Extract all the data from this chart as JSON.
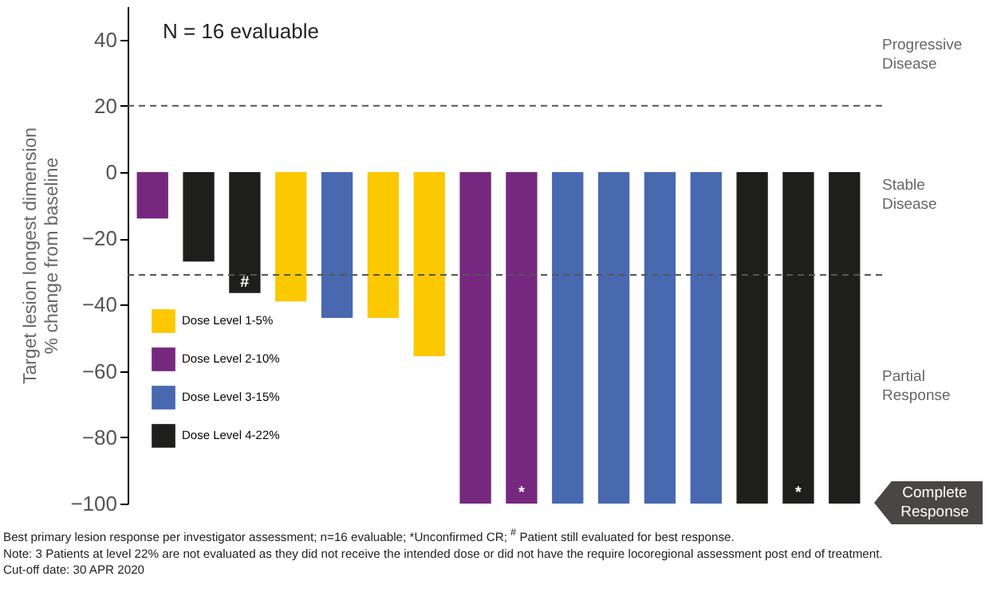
{
  "chart_data": {
    "type": "bar",
    "ylabel": "Target lesion longest dimension\n% change from baseline",
    "categories": [
      null,
      null,
      null,
      null,
      null,
      null,
      null,
      null,
      null,
      null,
      null,
      null,
      null,
      null,
      null,
      null
    ],
    "series": [
      {
        "name": "Dose Level 1-5%",
        "color": "#fcc800",
        "values": [
          null,
          null,
          null,
          -39,
          null,
          -44,
          -55.5,
          null,
          null,
          null,
          null,
          null,
          null,
          null,
          null,
          null
        ]
      },
      {
        "name": "Dose Level 2-10%",
        "color": "#76287f",
        "values": [
          -14,
          null,
          null,
          null,
          null,
          null,
          null,
          -100,
          -100,
          null,
          null,
          null,
          null,
          null,
          null,
          null
        ],
        "value_labels": [
          null,
          null,
          null,
          null,
          null,
          null,
          null,
          null,
          "*",
          null,
          null,
          null,
          null,
          null,
          null,
          null
        ]
      },
      {
        "name": "Dose Level 3-15%",
        "color": "#4868b0",
        "values": [
          null,
          null,
          null,
          null,
          -44,
          null,
          null,
          null,
          null,
          -100,
          -100,
          -100,
          -100,
          null,
          null,
          null
        ]
      },
      {
        "name": "Dose Level 4-22%",
        "color": "#1e1f1c",
        "values": [
          null,
          -27,
          -36.5,
          null,
          null,
          null,
          null,
          null,
          null,
          null,
          null,
          null,
          null,
          -100,
          -100,
          -100
        ],
        "value_labels": [
          null,
          null,
          "#",
          null,
          null,
          null,
          null,
          null,
          null,
          null,
          null,
          null,
          null,
          null,
          "*",
          null
        ]
      }
    ],
    "ylim": [
      -100,
      50
    ],
    "yticks": [
      -100,
      -80,
      -60,
      -40,
      -20,
      0,
      20,
      40
    ],
    "grid": false,
    "legend": "bottom left",
    "ref_lines": [
      {
        "axis": "y",
        "value": 20,
        "line_style": "dashed",
        "color": "#555555"
      },
      {
        "axis": "y",
        "value": -31,
        "line_style": "dashed",
        "color": "#555555"
      }
    ],
    "annotations": [
      "N = 16 evaluable",
      "Progressive\nDisease",
      "Stable\nDisease",
      "Partial\nResponse",
      "Complete\nResponse",
      "Best primary lesion response per investigator assessment; n=16 evaluable; *Unconfirmed CR;      $^{#}$ Patient still evaluated for best response.",
      "Note: 3 Patients at level 22% are not evaluated as they did not receive the intended dose or did not have the require locoregional assessment post end of treatment.",
      "Cut-off date: 30 APR 2020"
    ]
  }
}
